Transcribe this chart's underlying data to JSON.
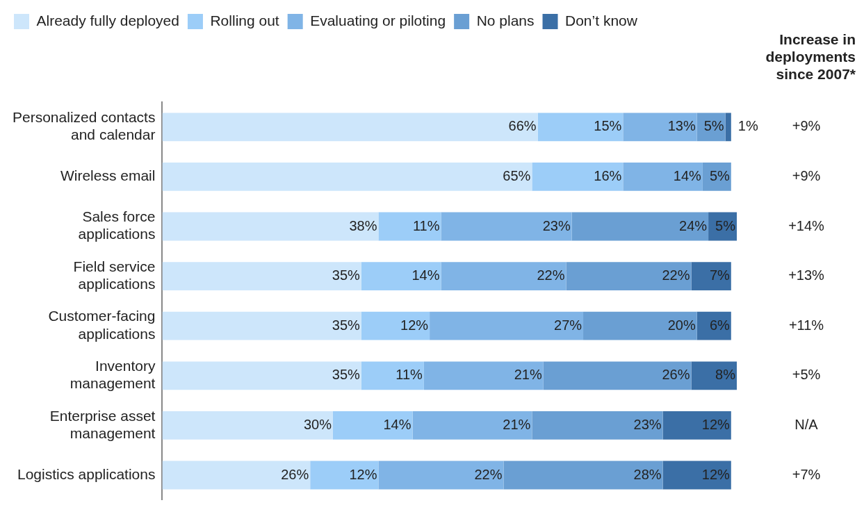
{
  "chart_data": {
    "type": "bar",
    "orientation": "horizontal",
    "stacked": true,
    "legend": "top",
    "tick_labels": "y",
    "grid": false,
    "categories": [
      "Personalized contacts\nand calendar",
      "Wireless email",
      "Sales force\napplications",
      "Field service\napplications",
      "Customer-facing\napplications",
      "Inventory\nmanagement",
      "Enterprise asset\nmanagement",
      "Logistics applications"
    ],
    "series": [
      {
        "name": "Already fully deployed",
        "color": "#cde6fb",
        "values": [
          66,
          65,
          38,
          35,
          35,
          35,
          30,
          26
        ],
        "value_labels": [
          "66%",
          "65%",
          "38%",
          "35%",
          "35%",
          "35%",
          "30%",
          "26%"
        ]
      },
      {
        "name": "Rolling out",
        "color": "#9ccdf8",
        "values": [
          15,
          16,
          11,
          14,
          12,
          11,
          14,
          12
        ],
        "value_labels": [
          "15%",
          "16%",
          "11%",
          "14%",
          "12%",
          "11%",
          "14%",
          "12%"
        ]
      },
      {
        "name": "Evaluating or piloting",
        "color": "#80b4e6",
        "values": [
          13,
          14,
          23,
          22,
          27,
          21,
          21,
          22
        ],
        "value_labels": [
          "13%",
          "14%",
          "23%",
          "22%",
          "27%",
          "21%",
          "21%",
          "22%"
        ]
      },
      {
        "name": "No plans",
        "color": "#6a9fd3",
        "values": [
          5,
          5,
          24,
          22,
          20,
          26,
          23,
          28
        ],
        "value_labels": [
          "5%",
          "5%",
          "24%",
          "22%",
          "20%",
          "26%",
          "23%",
          "28%"
        ]
      },
      {
        "name": "Don’t know",
        "color": "#3b6fa6",
        "values": [
          1,
          null,
          5,
          7,
          6,
          8,
          12,
          12
        ],
        "value_labels": [
          "1%",
          null,
          "5%",
          "7%",
          "6%",
          "8%",
          "12%",
          "12%"
        ]
      }
    ],
    "annotations": [
      "Increase in\ndeployments\nsince 2007*",
      "+9%",
      "+9%",
      "+14%",
      "+13%",
      "+11%",
      "+5%",
      "N/A",
      "+7%"
    ]
  }
}
